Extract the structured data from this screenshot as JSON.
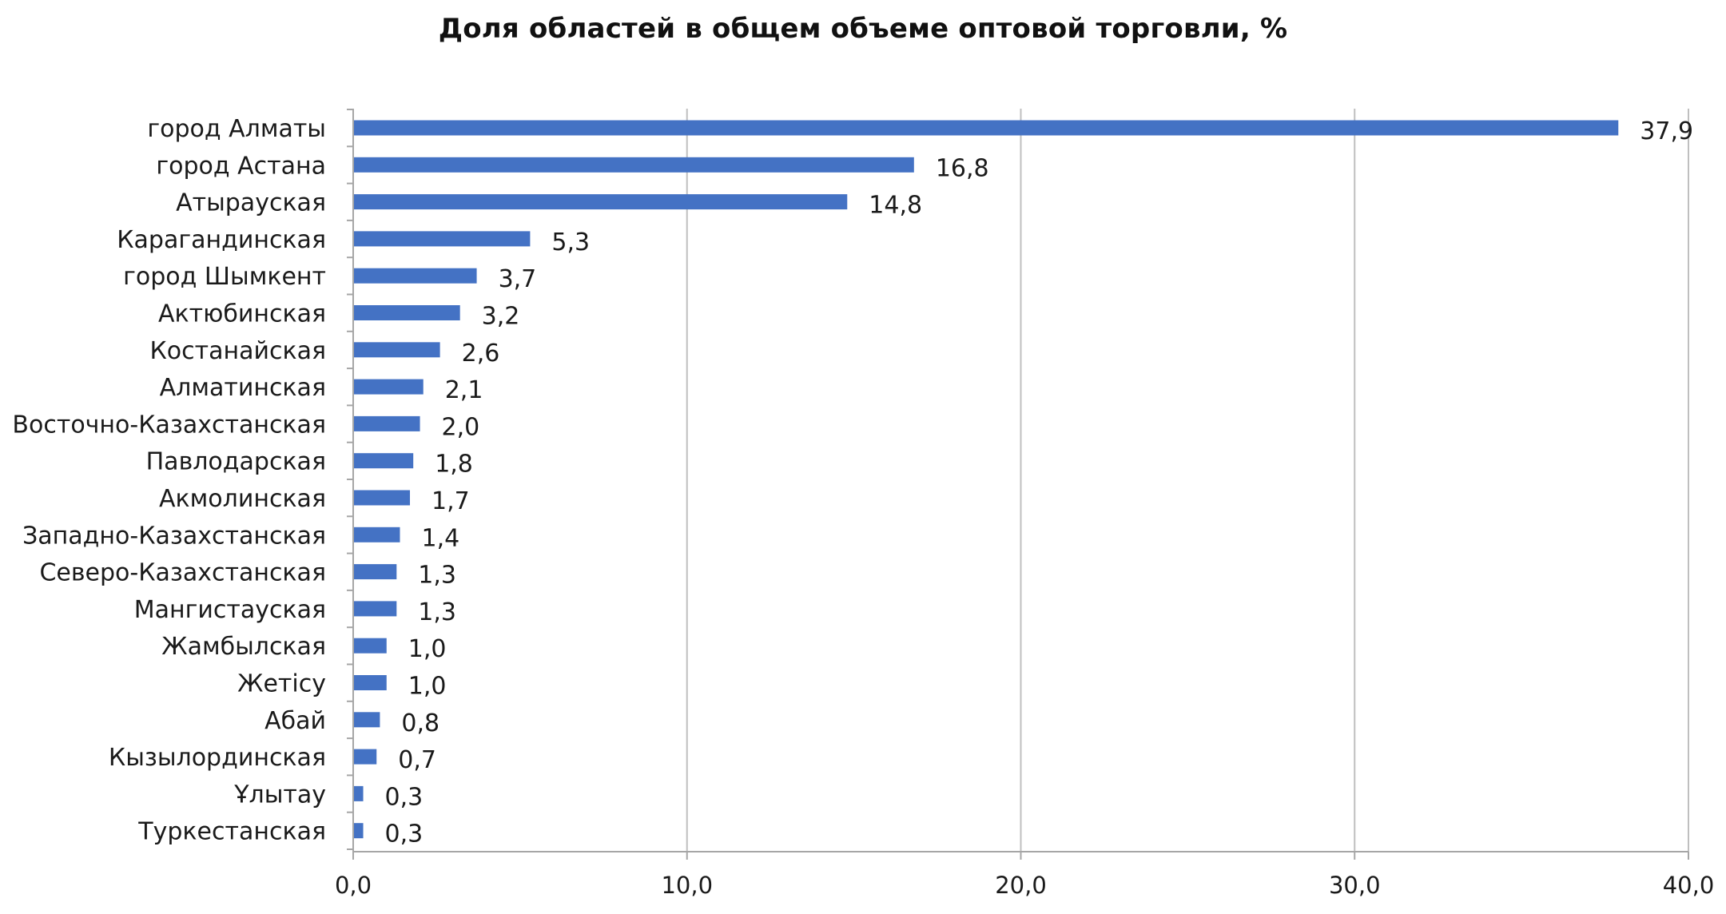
{
  "chart_data": {
    "type": "bar",
    "orientation": "horizontal",
    "title": "Доля областей в общем объеме оптовой торговли, %",
    "xlabel": "",
    "ylabel": "",
    "categories": [
      "город Алматы",
      "город Астана",
      "Атырауская",
      "Карагандинская",
      "город Шымкент",
      "Актюбинская",
      "Костанайская",
      "Алматинская",
      "Восточно-Казахстанская",
      "Павлодарская",
      "Акмолинская",
      "Западно-Казахстанская",
      "Северо-Казахстанская",
      "Мангистауская",
      "Жамбылская",
      "Жетісу",
      "Абай",
      "Кызылординская",
      "Ұлытау",
      "Туркестанская"
    ],
    "values": [
      37.9,
      16.8,
      14.8,
      5.3,
      3.7,
      3.2,
      2.6,
      2.1,
      2.0,
      1.8,
      1.7,
      1.4,
      1.3,
      1.3,
      1.0,
      1.0,
      0.8,
      0.7,
      0.3,
      0.3
    ],
    "value_labels": [
      "37,9",
      "16,8",
      "14,8",
      "5,3",
      "3,7",
      "3,2",
      "2,6",
      "2,1",
      "2,0",
      "1,8",
      "1,7",
      "1,4",
      "1,3",
      "1,3",
      "1,0",
      "1,0",
      "0,8",
      "0,7",
      "0,3",
      "0,3"
    ],
    "xlim": [
      0,
      40
    ],
    "x_ticks": [
      0,
      10,
      20,
      30,
      40
    ],
    "x_tick_labels": [
      "0,0",
      "10,0",
      "20,0",
      "30,0",
      "40,0"
    ],
    "grid": "vertical",
    "legend": "none",
    "bar_color": "#4472C4",
    "grid_color": "#BFBFBF",
    "axis_color": "#A6A6A6"
  }
}
